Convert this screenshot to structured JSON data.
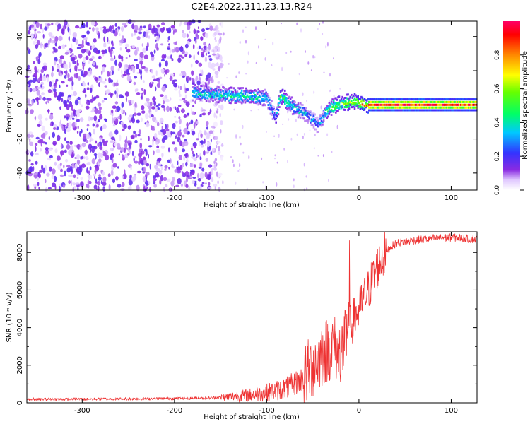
{
  "title": "C2E4.2022.311.23.13.R24",
  "chart_data": [
    {
      "type": "heatmap",
      "xlabel": "Height of straight line (km)",
      "ylabel": "Frequency (Hz)",
      "xlim": [
        -360,
        128
      ],
      "ylim": [
        -50,
        49
      ],
      "x_ticks": [
        -300,
        -200,
        -100,
        0,
        100
      ],
      "y_ticks": [
        -40,
        -20,
        0,
        20,
        40
      ],
      "colorbar": {
        "label": "Normalized spectral amplitude",
        "range": [
          0,
          1
        ],
        "ticks": [
          "0.0",
          "0.2",
          "0.4",
          "0.6",
          "0.8"
        ],
        "ticks_values": [
          0.0,
          0.2,
          0.4,
          0.6,
          0.8
        ],
        "colormap": "hsv_purple_to_red"
      },
      "features": {
        "noise_region_x": [
          -360,
          -160
        ],
        "noise_amplitude": 0.15,
        "ridge_points": [
          {
            "x": -180,
            "f": 7,
            "a": 0.4
          },
          {
            "x": -150,
            "f": 6,
            "a": 0.45
          },
          {
            "x": -120,
            "f": 5,
            "a": 0.45
          },
          {
            "x": -100,
            "f": 4,
            "a": 0.4
          },
          {
            "x": -90,
            "f": -8,
            "a": 0.25
          },
          {
            "x": -85,
            "f": 6,
            "a": 0.6
          },
          {
            "x": -70,
            "f": -2,
            "a": 0.4
          },
          {
            "x": -55,
            "f": -6,
            "a": 0.35
          },
          {
            "x": -45,
            "f": -12,
            "a": 0.3
          },
          {
            "x": -35,
            "f": -3,
            "a": 0.45
          },
          {
            "x": -20,
            "f": 1,
            "a": 0.6
          },
          {
            "x": -5,
            "f": 2,
            "a": 0.65
          },
          {
            "x": 10,
            "f": 0,
            "a": 0.9
          },
          {
            "x": 60,
            "f": 0,
            "a": 0.95
          },
          {
            "x": 128,
            "f": 0,
            "a": 0.9
          }
        ]
      }
    },
    {
      "type": "line",
      "xlabel": "Height of straight line (km)",
      "ylabel": "SNR (10 * v/v)",
      "xlim": [
        -360,
        128
      ],
      "ylim": [
        0,
        9100
      ],
      "x_ticks": [
        -300,
        -200,
        -100,
        0,
        100
      ],
      "y_ticks": [
        0,
        2000,
        4000,
        6000,
        8000
      ],
      "color": "#ee3333",
      "series": [
        {
          "x": [
            -360,
            -300,
            -200,
            -160,
            -120,
            -100,
            -80,
            -60,
            -50,
            -40,
            -30,
            -20,
            -15,
            -10,
            0,
            10,
            20,
            30,
            40,
            60,
            80,
            100,
            128
          ],
          "values": [
            180,
            200,
            230,
            260,
            400,
            550,
            750,
            1300,
            2000,
            2600,
            3000,
            2800,
            3200,
            4000,
            5000,
            6000,
            7200,
            8100,
            8500,
            8650,
            8750,
            8800,
            8700
          ]
        }
      ]
    }
  ]
}
